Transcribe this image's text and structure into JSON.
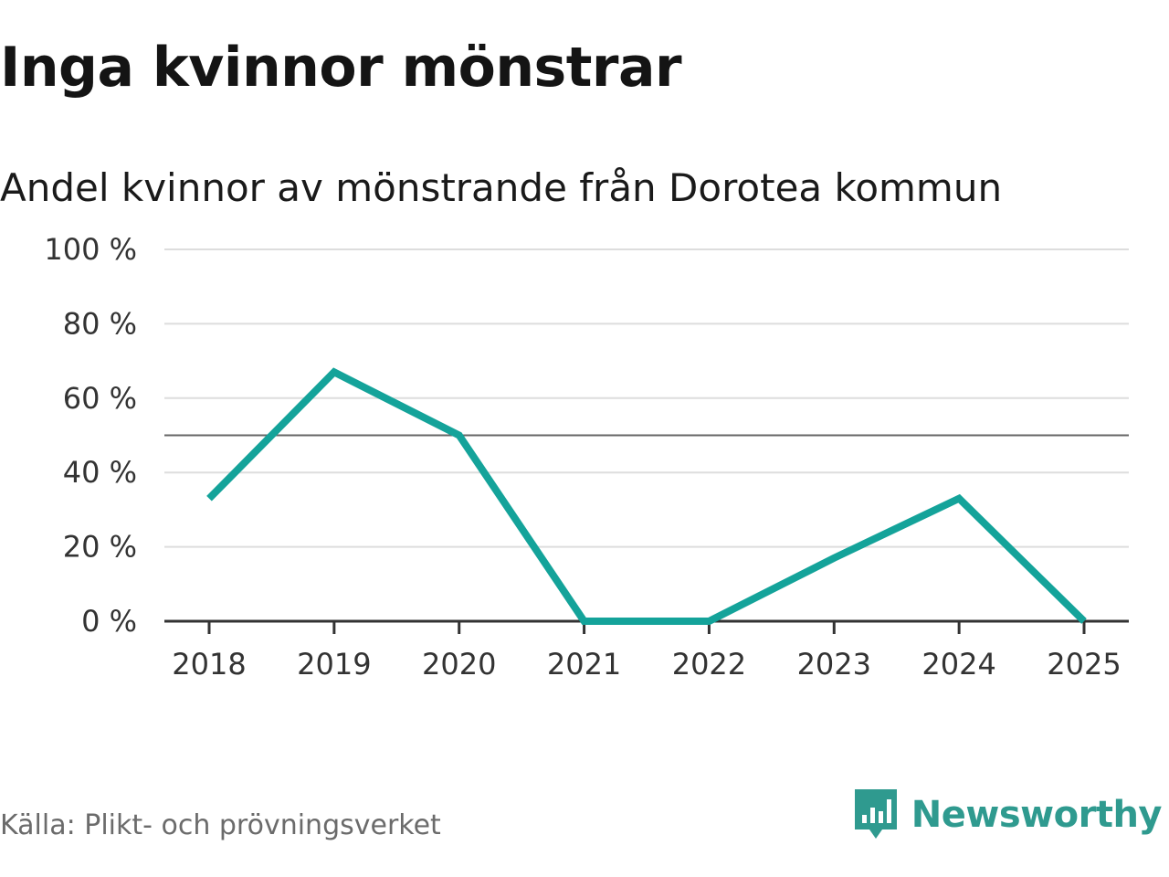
{
  "title": "Inga kvinnor mönstrar",
  "subtitle": "Andel kvinnor av mönstrande från Dorotea kommun",
  "source": "Källa: Plikt- och prövningsverket",
  "brand": {
    "name": "Newsworthy",
    "icon": "newsworthy-logo-icon",
    "color": "#2f9a8f"
  },
  "colors": {
    "line": "#14a39a",
    "grid": "#dddddd",
    "reference": "#666666",
    "axis": "#333333"
  },
  "chart_data": {
    "type": "line",
    "title": "Andel kvinnor av mönstrande från Dorotea kommun",
    "xlabel": "",
    "ylabel": "",
    "categories": [
      "2018",
      "2019",
      "2020",
      "2021",
      "2022",
      "2023",
      "2024",
      "2025"
    ],
    "series": [
      {
        "name": "Andel kvinnor",
        "values": [
          33,
          67,
          50,
          0,
          0,
          17,
          33,
          0
        ]
      }
    ],
    "ylim": [
      0,
      100
    ],
    "yticks": [
      0,
      20,
      40,
      60,
      80,
      100
    ],
    "ytick_labels": [
      "0 %",
      "20 %",
      "40 %",
      "60 %",
      "80 %",
      "100 %"
    ],
    "reference_line": 50,
    "grid": true,
    "legend": "none"
  }
}
